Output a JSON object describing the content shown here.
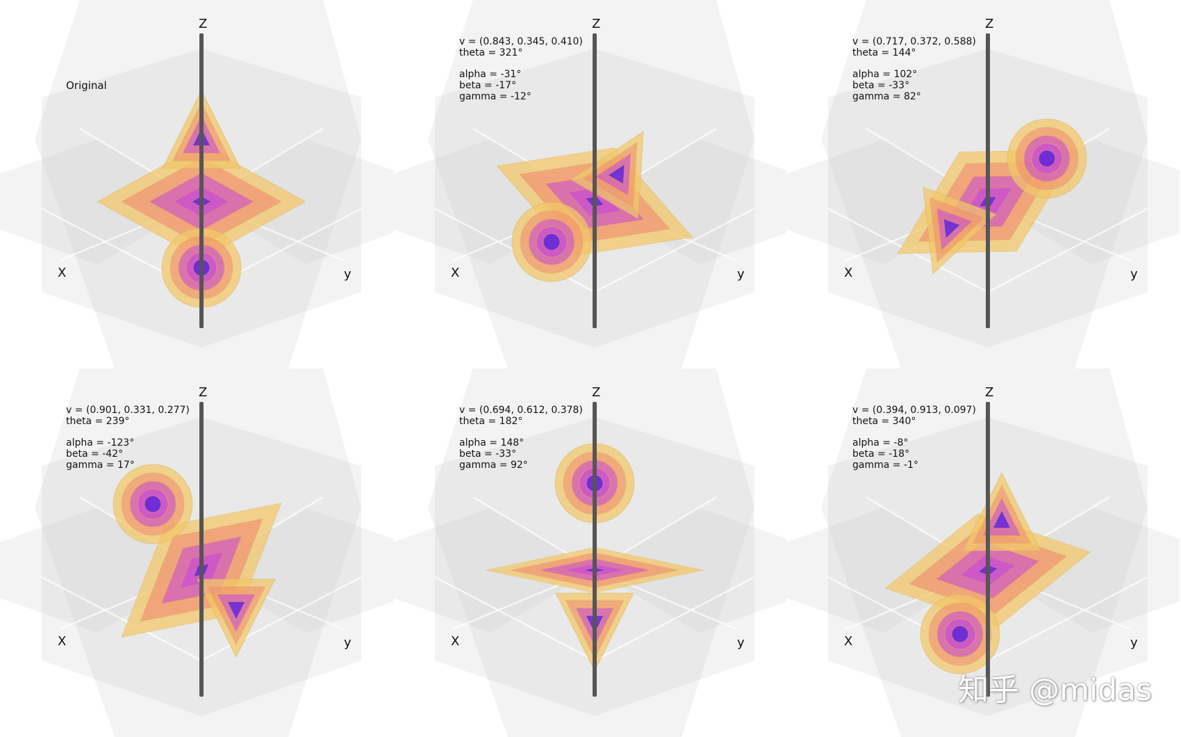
{
  "axes": {
    "z": "Z",
    "x": "X",
    "y": "y"
  },
  "panels": [
    {
      "id": "p1",
      "title": "Original",
      "lines": [],
      "shapes": {
        "diamond": {
          "tilt": 0,
          "sx": 1.0,
          "sy": 0.42
        },
        "sphere": {
          "dx": 0,
          "dy": 95
        },
        "cone": {
          "dx": 0,
          "dy": -90,
          "dir": "up"
        }
      }
    },
    {
      "id": "p2",
      "title": "",
      "lines": [
        "v = (0.843, 0.345, 0.410)",
        "theta = 321°",
        "",
        "alpha = -31°",
        "beta = -17°",
        "gamma = -12°"
      ],
      "shapes": {
        "diamond": {
          "tilt": 20
        },
        "sphere": {
          "dx": -62,
          "dy": 58
        },
        "cone": {
          "dx": 35,
          "dy": -40,
          "dir": "upright"
        }
      }
    },
    {
      "id": "p3",
      "title": "",
      "lines": [
        "v = (0.717, 0.372, 0.588)",
        "theta = 144°",
        "",
        "alpha = 102°",
        "beta = -33°",
        "gamma = 82°"
      ],
      "shapes": {
        "diamond": {
          "tilt": -30
        },
        "sphere": {
          "dx": 85,
          "dy": -62
        },
        "cone": {
          "dx": -55,
          "dy": 38,
          "dir": "downleft"
        }
      }
    },
    {
      "id": "p4",
      "title": "",
      "lines": [
        "v = (0.901, 0.331, 0.277)",
        "theta = 239°",
        "",
        "alpha = -123°",
        "beta = -42°",
        "gamma = 17°"
      ],
      "shapes": {
        "diamond": {
          "tilt": -40
        },
        "sphere": {
          "dx": -70,
          "dy": -95
        },
        "cone": {
          "dx": 50,
          "dy": 55,
          "dir": "down"
        }
      }
    },
    {
      "id": "p5",
      "title": "",
      "lines": [
        "v = (0.694, 0.612, 0.378)",
        "theta = 182°",
        "",
        "alpha = 148°",
        "beta = -33°",
        "gamma = 92°"
      ],
      "shapes": {
        "diamond": {
          "tilt": 0,
          "flat": true
        },
        "sphere": {
          "dx": 0,
          "dy": -125
        },
        "cone": {
          "dx": 0,
          "dy": 75,
          "dir": "down"
        }
      }
    },
    {
      "id": "p6",
      "title": "",
      "lines": [
        "v = (0.394, 0.913, 0.097)",
        "theta = 340°",
        "",
        "alpha = -8°",
        "beta = -18°",
        "gamma = -1°"
      ],
      "shapes": {
        "diamond": {
          "tilt": -10
        },
        "sphere": {
          "dx": -40,
          "dy": 92
        },
        "cone": {
          "dx": 20,
          "dy": -70,
          "dir": "up"
        }
      }
    }
  ],
  "watermark": "知乎 @midas",
  "colors": {
    "outer": "#f1c76a",
    "mid": "#f08a70",
    "inner": "#c94fd0",
    "core": "#6a2bd6",
    "axis": "#555555"
  }
}
